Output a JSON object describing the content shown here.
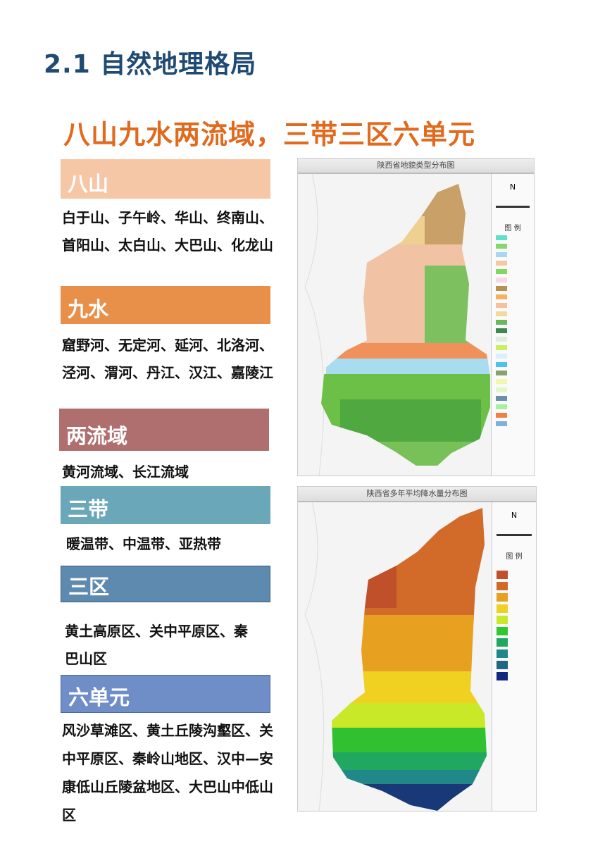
{
  "title": "2.1 自然地理格局",
  "subtitle": "八山九水两流域，三带三区六单元",
  "sections": [
    {
      "label": "八山",
      "color": "#f5c7a7",
      "text": "白于山、子午岭、华山、终南山、首阳山、太白山、大巴山、化龙山"
    },
    {
      "label": "九水",
      "color": "#e8904a",
      "text": "窟野河、无定河、延河、北洛河、泾河、渭河、丹江、汉江、嘉陵江"
    },
    {
      "label": "两流域",
      "color": "#b06f6f",
      "text": "黄河流域、长江流域"
    },
    {
      "label": "三带",
      "color": "#6aa8b9",
      "text": "暖温带、中温带、亚热带"
    },
    {
      "label": "三区",
      "color": "#5f8ab0",
      "text": "黄土高原区、关中平原区、秦巴山区"
    },
    {
      "label": "六单元",
      "color": "#6f8dc6",
      "text": "风沙草滩区、黄土丘陵沟壑区、关中平原区、秦岭山地区、汉中—安康低山丘陵盆地区、大巴山中低山区"
    }
  ],
  "maps": [
    {
      "title": "陕西省地貌类型分布图",
      "legend_title": "图 例",
      "north": "N",
      "legend_colors": [
        "#5fe0c8",
        "#86d86a",
        "#a8d8f0",
        "#f5c8a0",
        "#7fd860",
        "#f8d8e8",
        "#b89050",
        "#f8b060",
        "#f5c0a0",
        "#f5d8a0",
        "#6ab858",
        "#3c8a50",
        "#e0ece0",
        "#c8f060",
        "#d8f0f8",
        "#50c0f0",
        "#8aa070",
        "#f0f8b0",
        "#e0f8c8",
        "#6890a8",
        "#a8f0a0",
        "#f08048",
        "#80b0e0"
      ]
    },
    {
      "title": "陕西省多年平均降水量分布图",
      "legend_title": "图 例",
      "north": "N",
      "legend_colors": [
        "#c0502a",
        "#d06a28",
        "#e8a020",
        "#f0d020",
        "#c8e828",
        "#30c830",
        "#20a860",
        "#208888",
        "#206880",
        "#102880"
      ]
    }
  ]
}
